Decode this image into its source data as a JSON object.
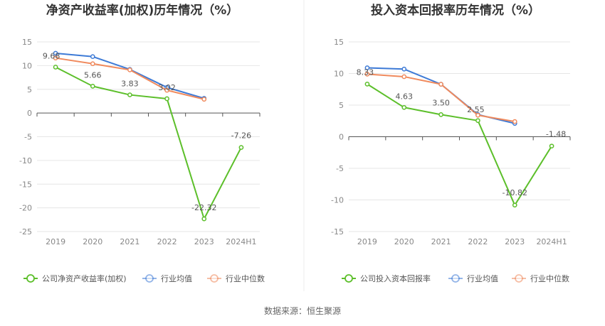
{
  "chart_data": [
    {
      "type": "line",
      "title": "净资产收益率(加权)历年情况（%）",
      "categories": [
        "2019",
        "2020",
        "2021",
        "2022",
        "2023",
        "2024H1"
      ],
      "ylim": [
        -25,
        15
      ],
      "yticks": [
        15,
        10,
        5,
        0,
        -5,
        -10,
        -15,
        -20,
        -25
      ],
      "grid": true,
      "legend_position": "bottom",
      "series": [
        {
          "name": "公司净资产收益率(加权)",
          "color": "#5cbf2a",
          "values": [
            9.68,
            5.66,
            3.83,
            3.02,
            -22.32,
            -7.26
          ],
          "labels": [
            "9.68",
            "5.66",
            "3.83",
            "3.02",
            "-22.32",
            "-7.26"
          ]
        },
        {
          "name": "行业均值",
          "color": "#3d7ad6",
          "values": [
            12.6,
            11.9,
            9.2,
            5.4,
            3.1,
            null
          ]
        },
        {
          "name": "行业中位数",
          "color": "#f08a5d",
          "values": [
            11.6,
            10.4,
            9.1,
            4.8,
            2.9,
            null
          ]
        }
      ]
    },
    {
      "type": "line",
      "title": "投入资本回报率历年情况（%）",
      "categories": [
        "2019",
        "2020",
        "2021",
        "2022",
        "2023",
        "2024H1"
      ],
      "ylim": [
        -15,
        15
      ],
      "yticks": [
        15,
        10,
        5,
        0,
        -5,
        -10,
        -15
      ],
      "grid": true,
      "legend_position": "bottom",
      "series": [
        {
          "name": "公司投入资本回报率",
          "color": "#5cbf2a",
          "values": [
            8.33,
            4.63,
            3.5,
            2.55,
            -10.82,
            -1.48
          ],
          "labels": [
            "8.33",
            "4.63",
            "3.50",
            "2.55",
            "-10.82",
            "-1.48"
          ]
        },
        {
          "name": "行业均值",
          "color": "#3d7ad6",
          "values": [
            10.9,
            10.7,
            8.3,
            3.5,
            2.1,
            null
          ]
        },
        {
          "name": "行业中位数",
          "color": "#f08a5d",
          "values": [
            9.9,
            9.5,
            8.3,
            3.4,
            2.4,
            null
          ]
        }
      ]
    }
  ],
  "source": "数据来源：恒生聚源"
}
